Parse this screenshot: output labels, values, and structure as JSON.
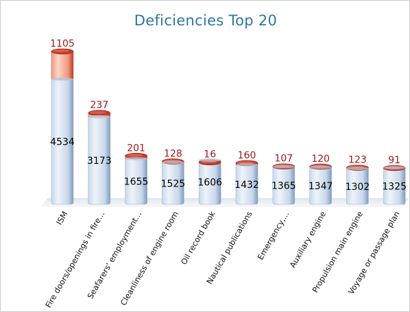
{
  "chart_data": {
    "type": "bar",
    "title": "Deficiencies Top 20",
    "categories": [
      "ISM",
      "Fire doors/openings in fire...",
      "Seafarers' employment...",
      "Cleanliness of engine room",
      "Oil record book",
      "Nautical publications",
      "Emergency,...",
      "Auxiliary engine",
      "Propulsion main engine",
      "Voyage or passage plan"
    ],
    "series": [
      {
        "values": [
          4534,
          3173,
          1655,
          1525,
          1606,
          1432,
          1365,
          1347,
          1302,
          1325
        ]
      },
      {
        "values": [
          1105,
          237,
          201,
          128,
          16,
          160,
          107,
          120,
          123,
          91
        ]
      }
    ],
    "stacked": true,
    "xlabel": "",
    "ylabel": "",
    "ylim": [
      0,
      5639
    ],
    "grid": false,
    "legend": "none",
    "colors": {
      "base_light": "#eef3f9",
      "base_mid": "#c9d8ea",
      "base_dark": "#7f9cbf",
      "top_light": "#fbd6c7",
      "top_mid": "#f09a7d",
      "top_dark": "#c0392b",
      "top_label": "#a31515",
      "base_label": "#000000",
      "title": "#2e75a6"
    }
  }
}
